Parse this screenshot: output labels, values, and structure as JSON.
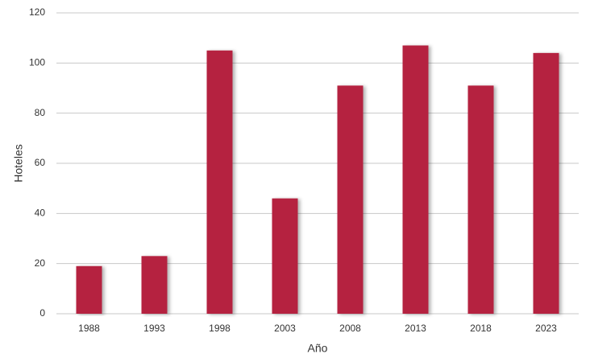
{
  "chart_data": {
    "type": "bar",
    "x_label": "Año",
    "y_label": "Hoteles",
    "categories": [
      "1988",
      "1993",
      "1998",
      "2003",
      "2008",
      "2013",
      "2018",
      "2023"
    ],
    "values": [
      19,
      23,
      105,
      46,
      91,
      107,
      91,
      104
    ],
    "color": "#b5243f",
    "ylim": [
      0,
      120
    ],
    "yticks": [
      0,
      20,
      40,
      60,
      80,
      100,
      120
    ],
    "grid": true
  }
}
